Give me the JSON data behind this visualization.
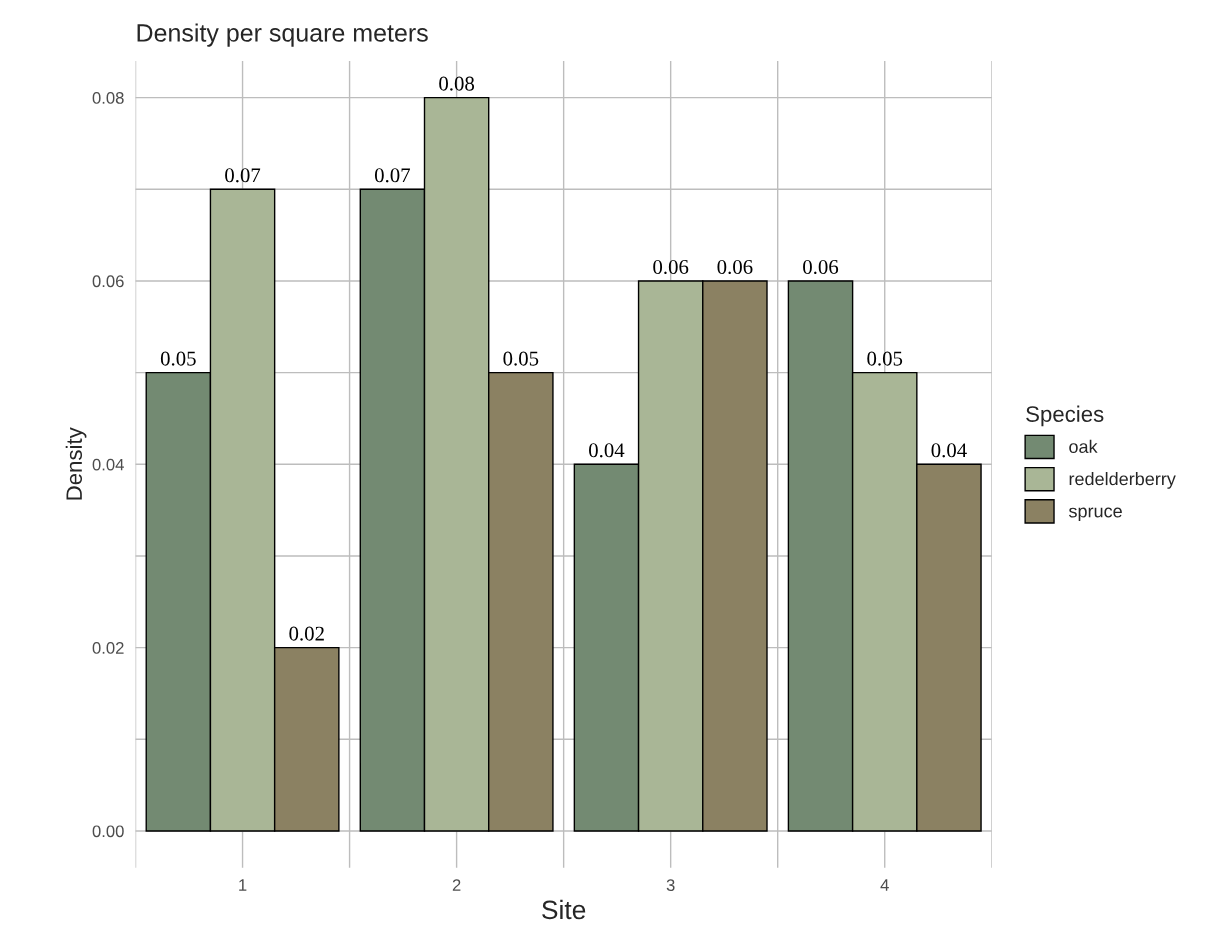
{
  "chart_data": {
    "type": "bar",
    "title": "Density per square meters",
    "xlabel": "Site",
    "ylabel": "Density",
    "legend_title": "Species",
    "categories": [
      "1",
      "2",
      "3",
      "4"
    ],
    "series": [
      {
        "name": "oak",
        "color": "#738a72",
        "values": [
          0.05,
          0.07,
          0.04,
          0.06
        ]
      },
      {
        "name": "redelderberry",
        "color": "#a9b696",
        "values": [
          0.07,
          0.08,
          0.06,
          0.05
        ]
      },
      {
        "name": "spruce",
        "color": "#8b8162",
        "values": [
          0.02,
          0.05,
          0.06,
          0.04
        ]
      }
    ],
    "ylim": [
      -0.004,
      0.084
    ],
    "yticks": [
      {
        "value": 0,
        "label": "0.00"
      },
      {
        "value": 0.01,
        "label": null
      },
      {
        "value": 0.02,
        "label": "0.02"
      },
      {
        "value": 0.03,
        "label": null
      },
      {
        "value": 0.04,
        "label": "0.04"
      },
      {
        "value": 0.05,
        "label": null
      },
      {
        "value": 0.06,
        "label": "0.06"
      },
      {
        "value": 0.07,
        "label": null
      },
      {
        "value": 0.08,
        "label": "0.08"
      }
    ],
    "data_labels": true,
    "grid": true,
    "legend": "right"
  }
}
